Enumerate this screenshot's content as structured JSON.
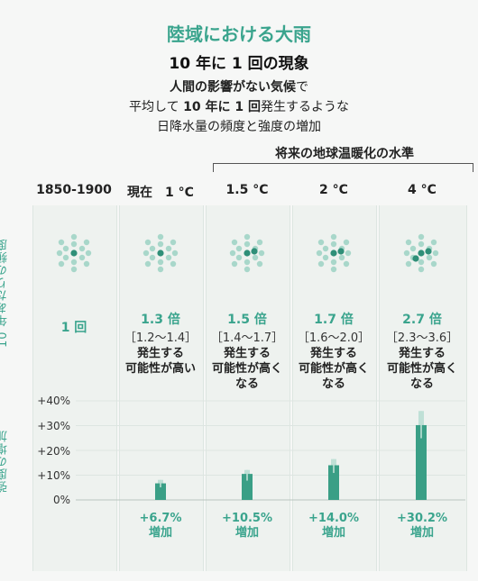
{
  "title": "陸域における大雨",
  "subtitle": "10 年に 1 回の現象",
  "description": {
    "line1_bold": "人間の影響がない気候",
    "line1_tail": "で",
    "line2_pre": "平均して",
    "line2_bold": "10 年に 1 回",
    "line2_tail": "発生するような",
    "line3": "日降水量の頻度と強度の増加"
  },
  "future_header": "将来の地球温暖化の水準",
  "columns": [
    {
      "header": "1850-1900"
    },
    {
      "header": "現在　1 °C"
    },
    {
      "header": "1.5 °C"
    },
    {
      "header": "2 °C"
    },
    {
      "header": "4 °C"
    }
  ],
  "side_labels": {
    "frequency": "10 年あたりの頻度",
    "intensity": "強度の増加"
  },
  "frequency": [
    {
      "main": "1 回",
      "range": "",
      "likely1": "",
      "likely2": "",
      "likely3": "",
      "dots": 1
    },
    {
      "main": "1.3 倍",
      "range": "［1.2～1.4］",
      "likely1": "発生する",
      "likely2": "可能性が高い",
      "likely3": "",
      "dots": 1.3
    },
    {
      "main": "1.5 倍",
      "range": "［1.4～1.7］",
      "likely1": "発生する",
      "likely2": "可能性が高く",
      "likely3": "なる",
      "dots": 1.5
    },
    {
      "main": "1.7 倍",
      "range": "［1.6～2.0］",
      "likely1": "発生する",
      "likely2": "可能性が高く",
      "likely3": "なる",
      "dots": 1.7
    },
    {
      "main": "2.7 倍",
      "range": "［2.3～3.6］",
      "likely1": "発生する",
      "likely2": "可能性が高く",
      "likely3": "なる",
      "dots": 2.7
    }
  ],
  "increase_labels": [
    {
      "value": "",
      "word": ""
    },
    {
      "value": "+6.7%",
      "word": "増加"
    },
    {
      "value": "+10.5%",
      "word": "増加"
    },
    {
      "value": "+14.0%",
      "word": "増加"
    },
    {
      "value": "+30.2%",
      "word": "増加"
    }
  ],
  "y_ticks": [
    "+40%",
    "+30%",
    "+20%",
    "+10%",
    "0%"
  ],
  "colors": {
    "accent": "#3aa48d",
    "bar": "#3a9f86",
    "dot_dark": "#2f8f78",
    "dot_light": "#a8d7ca",
    "error": "#bfe0d6"
  },
  "chart_data": {
    "type": "bar",
    "categories": [
      "現在 1 °C",
      "1.5 °C",
      "2 °C",
      "4 °C"
    ],
    "values": [
      6.7,
      10.5,
      14.0,
      30.2
    ],
    "error_low": [
      5.1,
      7.8,
      10.9,
      24.9
    ],
    "error_high": [
      8.1,
      12.1,
      16.5,
      35.9
    ],
    "ylim": [
      0,
      40
    ],
    "ylabel": "強度の増加",
    "grid": true
  }
}
